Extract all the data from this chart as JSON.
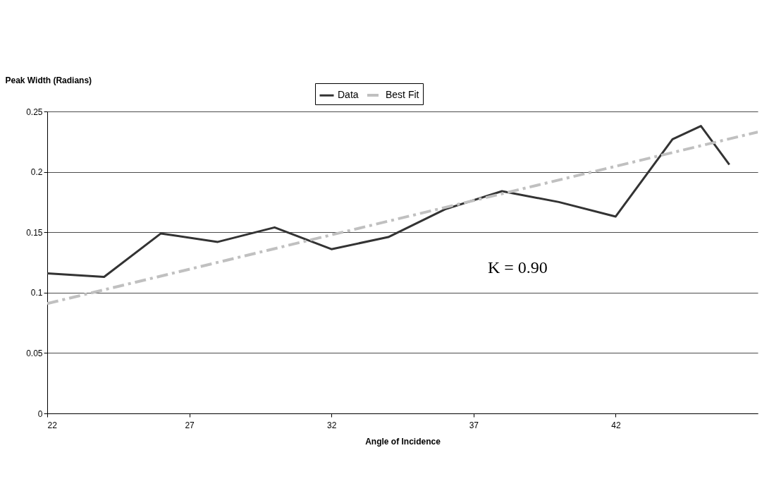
{
  "chart_data": {
    "type": "line",
    "xlabel": "Angle of Incidence",
    "ylabel": "Peak Width (Radians)",
    "x": [
      22,
      24,
      26,
      28,
      30,
      32,
      34,
      36,
      38,
      40,
      42,
      44,
      45,
      46
    ],
    "series": [
      {
        "name": "Data",
        "color": "#333333",
        "values": [
          0.116,
          0.113,
          0.149,
          0.142,
          0.154,
          0.136,
          0.146,
          0.169,
          0.184,
          0.175,
          0.163,
          0.227,
          0.238,
          0.206
        ]
      },
      {
        "name": "Best Fit",
        "type": "line",
        "color": "#c0c0c0",
        "line_style": "dashed",
        "x": [
          22,
          47
        ],
        "values": [
          0.091,
          0.233
        ]
      }
    ],
    "xlim": [
      22,
      47
    ],
    "xticks": [
      22,
      27,
      32,
      37,
      42
    ],
    "ylim": [
      0,
      0.25
    ],
    "yticks": [
      0,
      0.05,
      0.1,
      0.15,
      0.2,
      0.25
    ],
    "grid": "y",
    "legend": "top",
    "line_style": "solid",
    "marker": "none",
    "annotations": [
      "K = 0.90"
    ]
  }
}
